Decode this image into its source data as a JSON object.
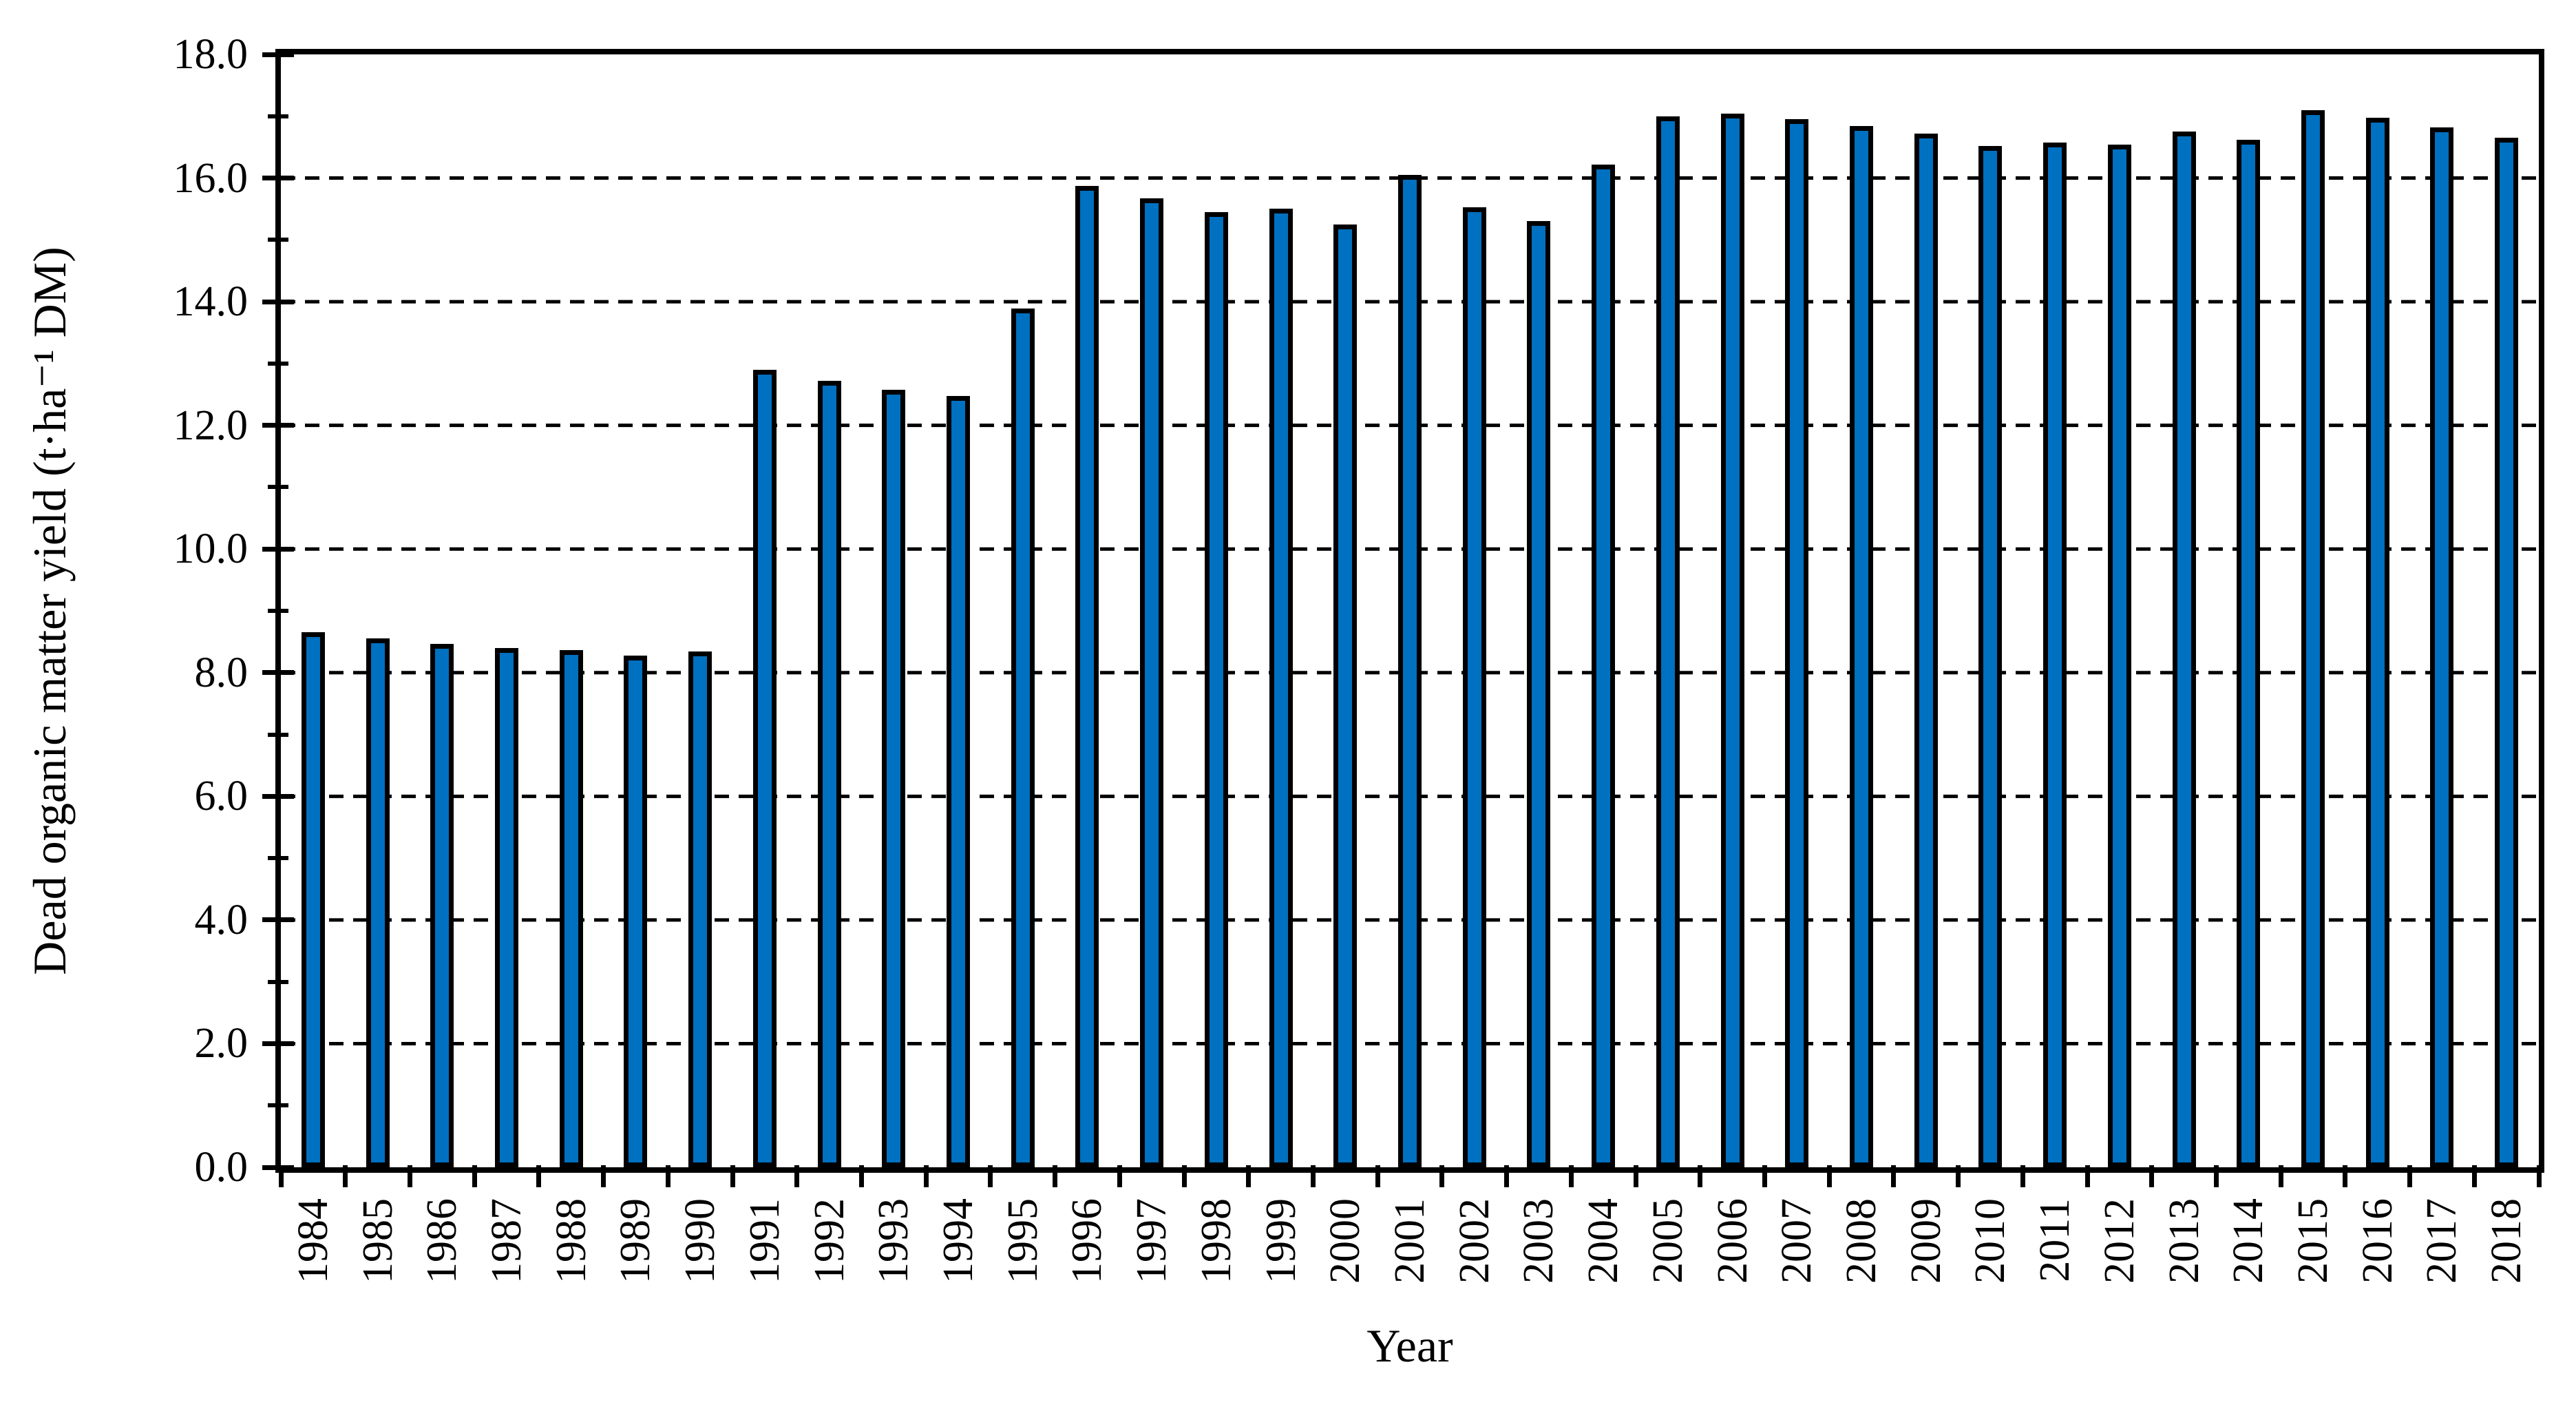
{
  "chart_data": {
    "type": "bar",
    "title": "",
    "xlabel": "Year",
    "ylabel": "Dead organic matter yield (t·ha⁻¹ DM)",
    "ylim": [
      0,
      18
    ],
    "ytick_labels": [
      "0.0",
      "2.0",
      "4.0",
      "6.0",
      "8.0",
      "10.0",
      "12.0",
      "14.0",
      "16.0",
      "18.0"
    ],
    "yticks_major": [
      0,
      2,
      4,
      6,
      8,
      10,
      12,
      14,
      16,
      18
    ],
    "yticks_minor": [
      1,
      3,
      5,
      7,
      9,
      11,
      13,
      15,
      17
    ],
    "gridlines": {
      "at": [
        2,
        4,
        6,
        8,
        10,
        12,
        14,
        16
      ],
      "style": "dashed",
      "color": "#000000"
    },
    "legend": "none",
    "plot_frame": "full-box",
    "x_label_rotation": -90,
    "categories": [
      "1984",
      "1985",
      "1986",
      "1987",
      "1988",
      "1989",
      "1990",
      "1991",
      "1992",
      "1993",
      "1994",
      "1995",
      "1996",
      "1997",
      "1998",
      "1999",
      "2000",
      "2001",
      "2002",
      "2003",
      "2004",
      "2005",
      "2006",
      "2007",
      "2008",
      "2009",
      "2010",
      "2011",
      "2012",
      "2013",
      "2014",
      "2015",
      "2016",
      "2017",
      "2018"
    ],
    "values": [
      8.65,
      8.55,
      8.46,
      8.4,
      8.36,
      8.28,
      8.34,
      12.9,
      12.72,
      12.58,
      12.48,
      13.89,
      15.87,
      15.67,
      15.45,
      15.5,
      15.25,
      16.05,
      15.53,
      15.3,
      16.22,
      17.0,
      17.04,
      16.95,
      16.84,
      16.72,
      16.52,
      16.57,
      16.54,
      16.75,
      16.62,
      17.1,
      16.97,
      16.82,
      16.65
    ],
    "bar_fill_color": "#0070C0",
    "bar_border_color": "#000000",
    "axis_color": "#000000",
    "background_color": "#ffffff"
  }
}
